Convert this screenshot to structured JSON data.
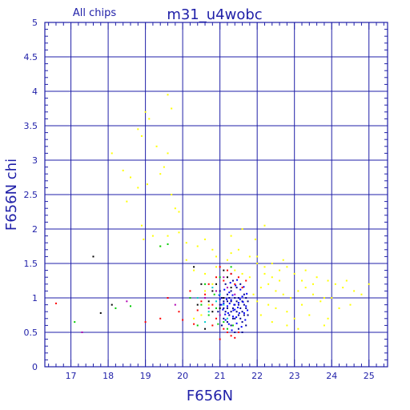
{
  "chart_data": {
    "type": "scatter",
    "title": "m31_u4wobc",
    "subtitle": "All chips",
    "xlabel": "F656N",
    "ylabel": "F656N chi",
    "xlim": [
      16.3,
      25.5
    ],
    "ylim": [
      0,
      5
    ],
    "xticks": [
      "17",
      "18",
      "19",
      "20",
      "21",
      "22",
      "23",
      "24",
      "25"
    ],
    "yticks": [
      "0",
      "0.5",
      "1",
      "1.5",
      "2",
      "2.5",
      "3",
      "3.5",
      "4",
      "4.5",
      "5"
    ],
    "grid": true,
    "colors": {
      "axis": "#1f1fa8",
      "grid": "#1f1fa8",
      "text": "#1f1fa8"
    },
    "series": [
      {
        "color": "#ffff00",
        "points": [
          [
            18.8,
            3.45
          ],
          [
            18.9,
            3.35
          ],
          [
            19.1,
            3.6
          ],
          [
            19.0,
            3.7
          ],
          [
            19.6,
            3.95
          ],
          [
            19.7,
            3.75
          ],
          [
            19.3,
            3.2
          ],
          [
            19.6,
            3.1
          ],
          [
            18.1,
            3.1
          ],
          [
            18.4,
            2.85
          ],
          [
            18.6,
            2.75
          ],
          [
            18.8,
            2.6
          ],
          [
            19.05,
            2.65
          ],
          [
            19.5,
            2.9
          ],
          [
            19.4,
            2.8
          ],
          [
            19.7,
            2.5
          ],
          [
            19.8,
            2.3
          ],
          [
            19.9,
            2.25
          ],
          [
            18.5,
            2.4
          ],
          [
            18.9,
            2.05
          ],
          [
            18.95,
            1.85
          ],
          [
            19.2,
            1.9
          ],
          [
            19.4,
            1.75
          ],
          [
            19.6,
            1.9
          ],
          [
            19.9,
            1.95
          ],
          [
            20.1,
            1.8
          ],
          [
            20.4,
            1.75
          ],
          [
            20.6,
            1.85
          ],
          [
            20.8,
            1.7
          ],
          [
            20.9,
            1.6
          ],
          [
            20.1,
            1.55
          ],
          [
            20.3,
            1.4
          ],
          [
            20.6,
            1.35
          ],
          [
            20.9,
            1.45
          ],
          [
            21.3,
            1.65
          ],
          [
            21.5,
            1.7
          ],
          [
            21.3,
            1.9
          ],
          [
            21.6,
            2.0
          ],
          [
            21.95,
            1.85
          ],
          [
            22.2,
            2.05
          ],
          [
            22.0,
            1.5
          ],
          [
            22.2,
            1.45
          ],
          [
            22.4,
            1.5
          ],
          [
            22.6,
            1.4
          ],
          [
            22.8,
            1.45
          ],
          [
            23.0,
            1.35
          ],
          [
            23.3,
            1.4
          ],
          [
            23.6,
            1.3
          ],
          [
            23.9,
            1.25
          ],
          [
            24.1,
            1.2
          ],
          [
            24.3,
            1.15
          ],
          [
            24.6,
            1.1
          ],
          [
            24.8,
            1.05
          ],
          [
            25.0,
            1.2
          ],
          [
            24.5,
            0.9
          ],
          [
            24.2,
            0.85
          ],
          [
            23.9,
            0.7
          ],
          [
            23.8,
            0.6
          ],
          [
            23.4,
            0.75
          ],
          [
            23.0,
            0.7
          ],
          [
            22.8,
            0.8
          ],
          [
            22.5,
            0.85
          ],
          [
            22.3,
            0.9
          ],
          [
            22.1,
            0.75
          ],
          [
            22.0,
            0.95
          ],
          [
            21.9,
            1.05
          ],
          [
            22.1,
            1.15
          ],
          [
            22.3,
            1.2
          ],
          [
            22.5,
            1.1
          ],
          [
            22.7,
            1.05
          ],
          [
            22.9,
            1.0
          ],
          [
            23.1,
            1.1
          ],
          [
            23.3,
            1.15
          ],
          [
            23.5,
            1.05
          ],
          [
            23.7,
            0.95
          ],
          [
            23.2,
            0.9
          ],
          [
            22.6,
            1.25
          ],
          [
            22.4,
            1.3
          ],
          [
            22.2,
            1.35
          ],
          [
            21.8,
            1.3
          ],
          [
            21.6,
            1.35
          ],
          [
            21.4,
            1.4
          ],
          [
            20.8,
            1.2
          ],
          [
            20.6,
            1.1
          ],
          [
            20.4,
            1.0
          ],
          [
            20.7,
            0.9
          ],
          [
            20.5,
            0.75
          ],
          [
            20.3,
            0.7
          ],
          [
            22.0,
            1.6
          ],
          [
            22.7,
            1.55
          ],
          [
            23.2,
            1.25
          ],
          [
            23.5,
            1.2
          ],
          [
            23.8,
            1.0
          ],
          [
            24.0,
            1.0
          ],
          [
            24.4,
            1.25
          ],
          [
            22.4,
            0.65
          ],
          [
            22.8,
            0.6
          ],
          [
            23.1,
            0.55
          ],
          [
            21.2,
            1.55
          ],
          [
            21.8,
            1.6
          ]
        ]
      },
      {
        "color": "#00008c",
        "points": [
          [
            21.0,
            0.9
          ],
          [
            21.1,
            0.85
          ],
          [
            21.2,
            0.95
          ],
          [
            21.3,
            0.8
          ],
          [
            21.4,
            0.9
          ],
          [
            21.5,
            1.0
          ],
          [
            21.6,
            0.95
          ],
          [
            21.7,
            0.85
          ],
          [
            21.2,
            1.05
          ],
          [
            21.3,
            1.1
          ],
          [
            21.4,
            0.7
          ],
          [
            21.5,
            0.75
          ],
          [
            21.6,
            0.65
          ],
          [
            21.1,
            0.7
          ],
          [
            21.2,
            0.65
          ],
          [
            21.3,
            0.6
          ],
          [
            21.45,
            1.15
          ],
          [
            21.55,
            1.2
          ],
          [
            21.65,
            1.05
          ],
          [
            21.75,
            0.75
          ],
          [
            21.0,
            1.1
          ],
          [
            21.15,
            1.2
          ],
          [
            21.35,
            1.25
          ],
          [
            21.5,
            0.55
          ],
          [
            21.6,
            0.5
          ],
          [
            21.4,
            0.5
          ],
          [
            21.25,
            0.75
          ],
          [
            21.35,
            0.85
          ],
          [
            21.45,
            0.95
          ],
          [
            21.55,
            0.85
          ],
          [
            21.65,
            0.75
          ],
          [
            21.7,
            1.0
          ],
          [
            21.05,
            1.0
          ],
          [
            21.1,
            0.95
          ],
          [
            20.95,
            0.8
          ],
          [
            21.2,
            0.85
          ],
          [
            21.3,
            0.95
          ],
          [
            21.4,
            1.0
          ],
          [
            21.5,
            0.9
          ],
          [
            21.6,
            0.8
          ],
          [
            21.25,
            1.0
          ],
          [
            21.35,
            0.7
          ],
          [
            21.45,
            0.8
          ],
          [
            21.55,
            0.7
          ],
          [
            21.65,
            0.9
          ],
          [
            21.15,
            0.8
          ],
          [
            21.05,
            0.6
          ],
          [
            21.7,
            0.6
          ],
          [
            21.75,
            0.95
          ],
          [
            21.3,
            1.35
          ]
        ]
      },
      {
        "color": "#0000ff",
        "points": [
          [
            21.1,
            0.92
          ],
          [
            21.2,
            0.88
          ],
          [
            21.3,
            0.97
          ],
          [
            21.4,
            0.83
          ],
          [
            21.5,
            0.93
          ],
          [
            21.6,
            1.02
          ],
          [
            21.7,
            0.88
          ],
          [
            21.25,
            1.08
          ],
          [
            21.35,
            0.73
          ],
          [
            21.45,
            0.63
          ],
          [
            21.55,
            1.12
          ],
          [
            21.65,
            0.78
          ],
          [
            21.15,
            0.68
          ],
          [
            21.0,
            0.98
          ],
          [
            21.42,
            1.18
          ],
          [
            21.58,
            0.58
          ],
          [
            21.32,
            0.53
          ],
          [
            21.22,
            0.78
          ],
          [
            21.48,
            0.86
          ],
          [
            21.62,
            0.94
          ],
          [
            21.12,
            1.12
          ],
          [
            21.28,
            1.22
          ],
          [
            21.38,
            0.9
          ],
          [
            21.52,
            0.78
          ],
          [
            21.68,
            0.68
          ],
          [
            21.18,
            0.98
          ],
          [
            21.08,
            0.83
          ],
          [
            21.72,
            1.06
          ],
          [
            21.44,
            0.72
          ],
          [
            21.34,
            1.04
          ],
          [
            21.24,
            0.62
          ],
          [
            21.54,
            0.98
          ],
          [
            21.64,
            1.16
          ],
          [
            21.14,
            0.76
          ],
          [
            21.04,
            0.9
          ],
          [
            20.98,
            1.04
          ],
          [
            21.74,
            0.82
          ],
          [
            21.46,
            1.26
          ],
          [
            21.36,
            0.82
          ],
          [
            21.26,
            0.92
          ]
        ]
      },
      {
        "color": "#ff0000",
        "points": [
          [
            16.6,
            0.92
          ],
          [
            19.0,
            0.65
          ],
          [
            19.4,
            0.7
          ],
          [
            20.0,
            0.68
          ],
          [
            20.3,
            0.62
          ],
          [
            20.6,
            1.05
          ],
          [
            20.8,
            0.9
          ],
          [
            20.9,
            1.3
          ],
          [
            21.0,
            1.45
          ],
          [
            21.1,
            1.25
          ],
          [
            21.2,
            1.4
          ],
          [
            21.3,
            1.35
          ],
          [
            21.4,
            1.2
          ],
          [
            21.5,
            1.3
          ],
          [
            21.6,
            1.15
          ],
          [
            21.1,
            0.55
          ],
          [
            21.2,
            0.5
          ],
          [
            21.3,
            0.45
          ],
          [
            21.5,
            0.5
          ],
          [
            21.7,
            1.25
          ],
          [
            20.7,
            1.2
          ],
          [
            20.9,
            0.7
          ],
          [
            20.5,
            0.95
          ],
          [
            20.2,
            1.1
          ],
          [
            19.9,
            0.8
          ],
          [
            20.8,
            0.6
          ],
          [
            21.0,
            0.4
          ],
          [
            21.4,
            0.42
          ],
          [
            19.6,
            1.0
          ],
          [
            20.4,
            0.82
          ]
        ]
      },
      {
        "color": "#00cc00",
        "points": [
          [
            17.1,
            0.65
          ],
          [
            18.2,
            0.85
          ],
          [
            18.6,
            0.88
          ],
          [
            19.4,
            1.75
          ],
          [
            19.6,
            1.78
          ],
          [
            20.2,
            1.0
          ],
          [
            20.5,
            0.9
          ],
          [
            20.7,
            0.75
          ],
          [
            20.9,
            0.85
          ],
          [
            21.0,
            1.3
          ],
          [
            21.1,
            0.65
          ],
          [
            20.85,
            1.05
          ],
          [
            20.6,
            1.2
          ],
          [
            21.3,
            1.45
          ],
          [
            20.4,
            0.6
          ],
          [
            21.2,
            0.55
          ],
          [
            20.95,
            0.62
          ],
          [
            21.35,
            0.6
          ]
        ]
      },
      {
        "color": "#000000",
        "points": [
          [
            17.6,
            1.6
          ],
          [
            17.8,
            0.78
          ],
          [
            18.1,
            0.9
          ],
          [
            20.3,
            1.45
          ],
          [
            20.5,
            1.2
          ],
          [
            20.7,
            0.95
          ],
          [
            20.8,
            1.1
          ],
          [
            20.9,
            1.2
          ],
          [
            21.0,
            0.85
          ],
          [
            21.1,
            1.0
          ],
          [
            21.2,
            1.3
          ],
          [
            21.3,
            1.15
          ],
          [
            20.6,
            0.55
          ],
          [
            20.8,
            0.8
          ],
          [
            21.1,
            1.4
          ],
          [
            20.4,
            0.9
          ]
        ]
      },
      {
        "color": "#b000b0",
        "points": [
          [
            17.3,
            0.5
          ],
          [
            18.5,
            0.95
          ],
          [
            19.8,
            0.9
          ],
          [
            20.6,
            1.0
          ],
          [
            20.9,
            1.1
          ],
          [
            21.0,
            0.75
          ],
          [
            21.2,
            1.15
          ],
          [
            21.4,
            1.05
          ],
          [
            21.1,
            1.3
          ],
          [
            20.7,
            0.85
          ]
        ]
      },
      {
        "color": "#00cccc",
        "points": [
          [
            20.4,
            1.0
          ],
          [
            20.7,
            0.8
          ],
          [
            20.9,
            0.95
          ],
          [
            21.0,
            1.05
          ],
          [
            21.2,
            0.7
          ],
          [
            21.1,
            0.9
          ],
          [
            20.8,
            1.15
          ],
          [
            20.6,
            0.65
          ]
        ]
      }
    ]
  }
}
